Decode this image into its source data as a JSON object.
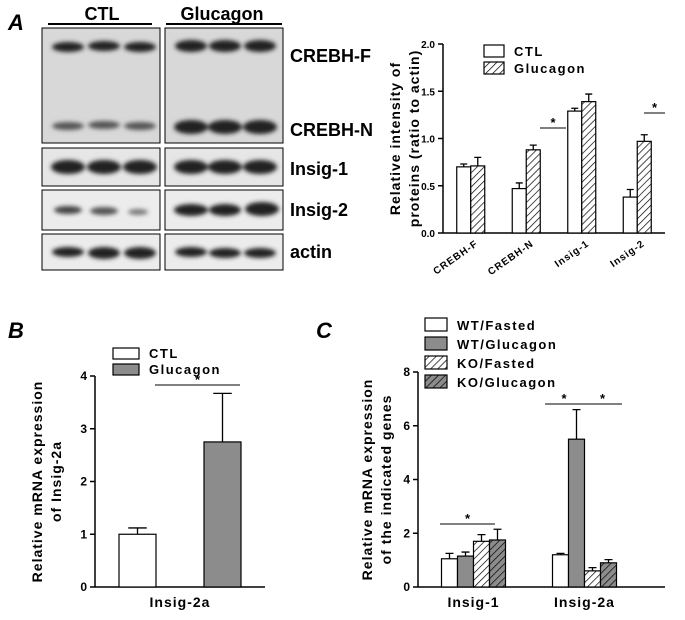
{
  "panels": [
    "A",
    "B",
    "C"
  ],
  "blot": {
    "groups": [
      "CTL",
      "Glucagon"
    ],
    "rows": [
      "CREBH-F",
      "CREBH-N",
      "Insig-1",
      "Insig-2",
      "actin"
    ]
  },
  "chart_data": [
    {
      "type": "bar",
      "ylabel": [
        "Relative intensity of",
        "proteins (ratio to actin)"
      ],
      "categories": [
        "CREBH-F",
        "CREBH-N",
        "Insig-1",
        "Insig-2"
      ],
      "series": [
        {
          "name": "CTL",
          "color": "#ffffff",
          "hatch": false,
          "values": [
            0.7,
            0.47,
            1.29,
            0.38
          ],
          "errors": [
            0.03,
            0.06,
            0.03,
            0.08
          ]
        },
        {
          "name": "Glucagon",
          "color": "#ffffff",
          "hatch": true,
          "values": [
            0.71,
            0.88,
            1.39,
            0.97
          ],
          "errors": [
            0.09,
            0.05,
            0.08,
            0.07
          ]
        }
      ],
      "ylim": [
        0,
        2
      ],
      "yticks": [
        {
          "value": 0,
          "label": "0.0"
        },
        {
          "value": 0.5,
          "label": "0.5"
        },
        {
          "value": 1,
          "label": "1.0"
        },
        {
          "value": 1.5,
          "label": "1.5"
        },
        {
          "value": 2,
          "label": "2.0"
        }
      ],
      "annotations": [
        "*",
        "*"
      ]
    },
    {
      "type": "bar",
      "ylabel": [
        "Relative mRNA expression",
        "of Insig-2a"
      ],
      "categories": [
        "Insig-2a"
      ],
      "series": [
        {
          "name": "CTL",
          "color": "#ffffff",
          "hatch": false,
          "values": [
            1.0
          ],
          "errors": [
            0.12
          ]
        },
        {
          "name": "Glucagon",
          "color": "#8c8c8c",
          "hatch": false,
          "values": [
            2.75
          ],
          "errors": [
            0.92
          ]
        }
      ],
      "ylim": [
        0,
        4
      ],
      "yticks": [
        0,
        1,
        2,
        3,
        4
      ],
      "annotations": [
        "*"
      ]
    },
    {
      "type": "bar",
      "ylabel": [
        "Relative mRNA expression",
        "of the indicated genes"
      ],
      "categories": [
        "Insig-1",
        "Insig-2a"
      ],
      "series": [
        {
          "name": "WT/Fasted",
          "color": "#ffffff",
          "hatch": false,
          "values": [
            1.05,
            1.2
          ],
          "errors": [
            0.2,
            0.05
          ]
        },
        {
          "name": "WT/Glucagon",
          "color": "#8c8c8c",
          "hatch": false,
          "values": [
            1.15,
            5.5
          ],
          "errors": [
            0.15,
            1.1
          ]
        },
        {
          "name": "KO/Fasted",
          "color": "#ffffff",
          "hatch": true,
          "values": [
            1.7,
            0.6
          ],
          "errors": [
            0.25,
            0.12
          ]
        },
        {
          "name": "KO/Glucagon",
          "color": "#8c8c8c",
          "hatch": true,
          "values": [
            1.75,
            0.9
          ],
          "errors": [
            0.4,
            0.12
          ]
        }
      ],
      "ylim": [
        0,
        8
      ],
      "yticks": [
        0,
        2,
        4,
        6,
        8
      ],
      "annotations": [
        "*",
        "*",
        "*"
      ]
    }
  ]
}
